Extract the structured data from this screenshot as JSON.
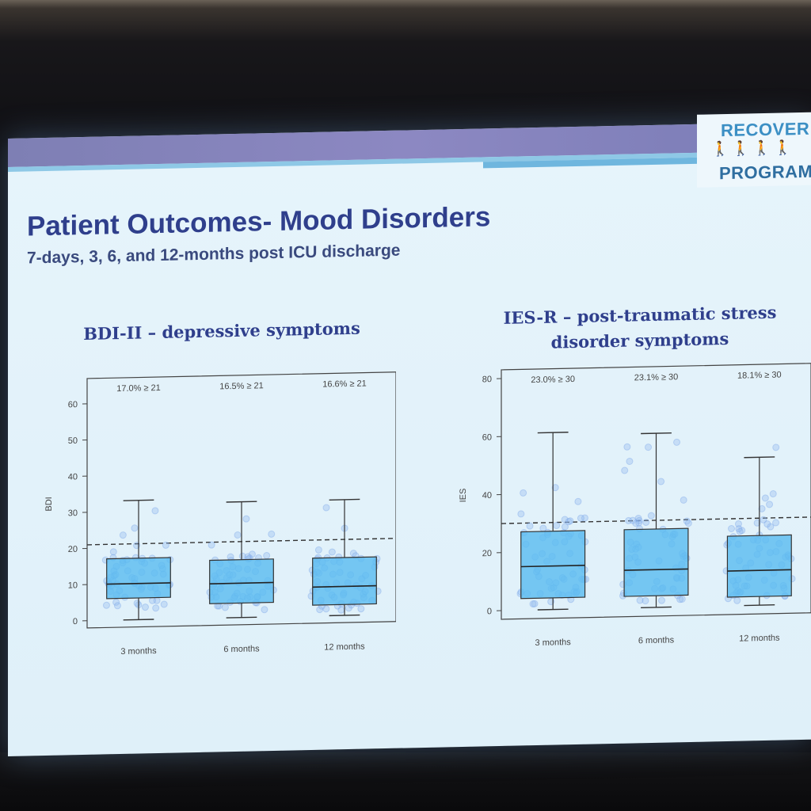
{
  "slide": {
    "logo_top": "RECOVER",
    "logo_bottom": "PROGRAM",
    "title": "Patient Outcomes- Mood Disorders",
    "subtitle": "7-days, 3, 6, and 12-months post ICU discharge"
  },
  "chart_data": [
    {
      "type": "box",
      "title": "BDI-II – depressive symptoms",
      "ylabel": "BDI",
      "xlabel": "",
      "ylim": [
        -2,
        67
      ],
      "yticks": [
        0,
        10,
        20,
        30,
        40,
        50,
        60
      ],
      "categories": [
        "3 months",
        "6 months",
        "12 months"
      ],
      "annotations": [
        "17.0% ≥ 21",
        "16.5% ≥ 21",
        "16.6% ≥ 21"
      ],
      "threshold": 21,
      "boxes": [
        {
          "whisker_low": 0,
          "q1": 6,
          "median": 10,
          "q3": 17,
          "whisker_high": 33
        },
        {
          "whisker_low": 0,
          "q1": 4,
          "median": 9.5,
          "q3": 16,
          "whisker_high": 32
        },
        {
          "whisker_low": 0,
          "q1": 3,
          "median": 8,
          "q3": 16,
          "whisker_high": 32
        }
      ],
      "box_color": "#5bbcf0",
      "point_color": "#8fb8ee"
    },
    {
      "type": "box",
      "title": "IES-R – post-traumatic stress disorder symptoms",
      "ylabel": "IES",
      "xlabel": "",
      "ylim": [
        -3,
        83
      ],
      "yticks": [
        0,
        20,
        40,
        60,
        80
      ],
      "categories": [
        "3 months",
        "6 months",
        "12 months"
      ],
      "annotations": [
        "23.0% ≥ 30",
        "23.1% ≥ 30",
        "18.1% ≥ 30"
      ],
      "threshold": 30,
      "boxes": [
        {
          "whisker_low": 0,
          "q1": 4,
          "median": 15,
          "q3": 27,
          "whisker_high": 61
        },
        {
          "whisker_low": 0,
          "q1": 4,
          "median": 13,
          "q3": 27,
          "whisker_high": 60
        },
        {
          "whisker_low": 0,
          "q1": 3,
          "median": 12,
          "q3": 24,
          "whisker_high": 51
        }
      ],
      "box_color": "#5bbcf0",
      "point_color": "#8fb8ee"
    }
  ]
}
